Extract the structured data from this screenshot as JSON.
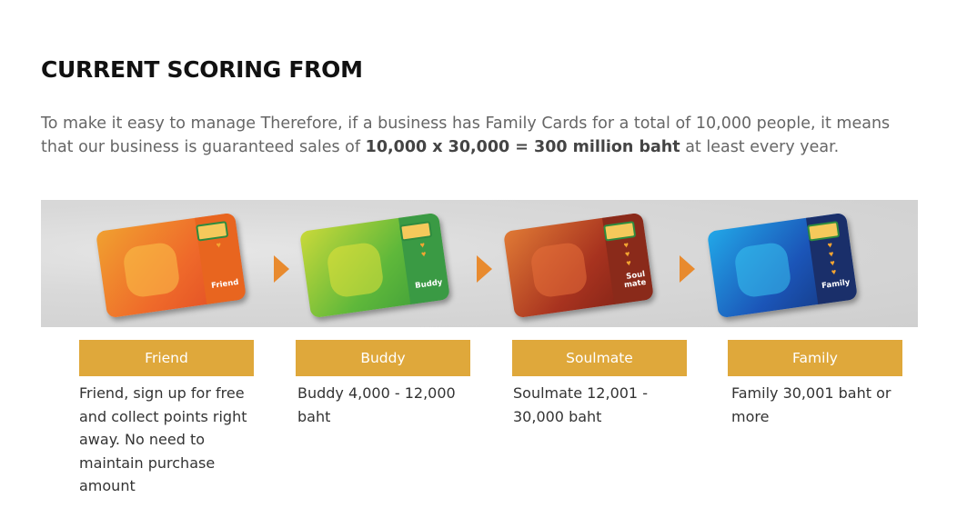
{
  "heading": "CURRENT SCORING FROM",
  "intro": {
    "part1": "To make it easy to manage Therefore, if a business has Family Cards for a total of 10,000 people, it means that our business is guaranteed sales of",
    "bold": "10,000 x 30,000 = 300 million baht",
    "part2": "at least every year."
  },
  "tiers": [
    {
      "name": "Friend",
      "card_level": "Friend",
      "description": "Friend, sign up for free and collect points right away. No need to maintain purchase amount",
      "hearts": 1
    },
    {
      "name": "Buddy",
      "card_level": "Buddy",
      "description": "Buddy 4,000 - 12,000 baht",
      "hearts": 2
    },
    {
      "name": "Soulmate",
      "card_level": "Soul mate",
      "description": "Soulmate 12,001 - 30,000 baht",
      "hearts": 3
    },
    {
      "name": "Family",
      "card_level": "Family",
      "description": "Family 30,001 baht or more",
      "hearts": 4
    }
  ],
  "colors": {
    "label_bg": "#dfa83b",
    "arrow": "#e88a2e",
    "friend_card": "#ef6a2a",
    "buddy_card": "#5fb83a",
    "soulmate_card": "#a8331f",
    "family_card": "#1b55b8"
  }
}
